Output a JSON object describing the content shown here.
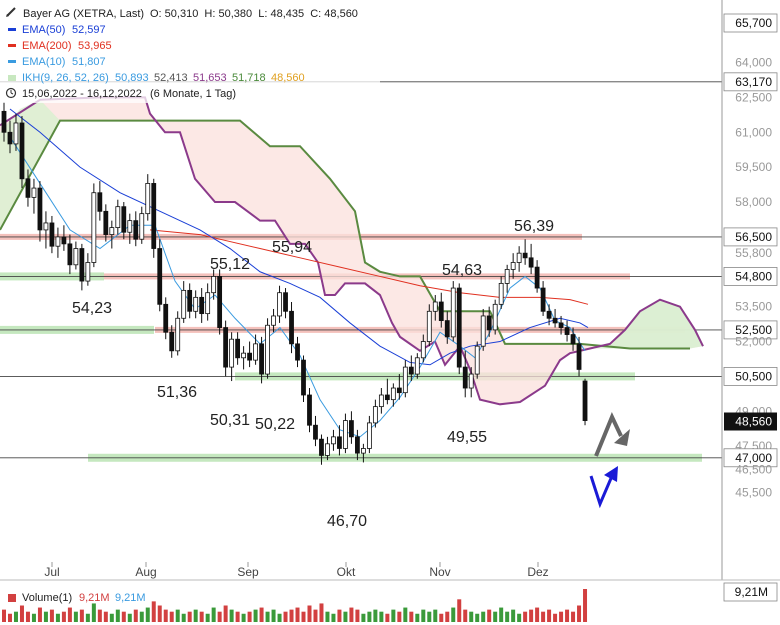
{
  "header": {
    "title": "Bayer AG (XETRA, Last)",
    "ohlc": "O: 50,310  H: 50,380  L: 48,435  C: 48,560",
    "range": "15,06,2022 - 16,12,2022",
    "range_note": "(6 Monate, 1 Tag)"
  },
  "legend": [
    {
      "label": "EMA(50)",
      "value": "52,597",
      "color": "#1a3fd6"
    },
    {
      "label": "EMA(200)",
      "value": "53,965",
      "color": "#e03020"
    },
    {
      "label": "EMA(10)",
      "value": "51,807",
      "color": "#3a9be0"
    }
  ],
  "ikh": {
    "label": "IKH(9, 26, 52, 26)",
    "values": [
      "50,893",
      "52,413",
      "51,653",
      "51,718",
      "48,560"
    ],
    "colors": [
      "#3a9be0",
      "#555555",
      "#8b3a8b",
      "#4a8a3a",
      "#e0a020"
    ]
  },
  "volume": {
    "label": "Volume(1)",
    "v1": "9,21M",
    "v2": "9,21M",
    "badge": "9,21M"
  },
  "chart_data": {
    "type": "candlestick",
    "y_axis": {
      "range": [
        44.7,
        66.2
      ],
      "ticks": [
        "65,700",
        "64,000",
        "63,170",
        "62,500",
        "61,000",
        "59,500",
        "58,000",
        "56,500",
        "55,800",
        "54,800",
        "53,500",
        "52,500",
        "52,000",
        "50,500",
        "49,000",
        "48,560",
        "47,500",
        "47,000",
        "46,500",
        "45,500"
      ],
      "tick_values": [
        65.7,
        64.0,
        63.17,
        62.5,
        61.0,
        59.5,
        58.0,
        56.5,
        55.8,
        54.8,
        53.5,
        52.5,
        52.0,
        50.5,
        49.0,
        48.56,
        47.5,
        47.0,
        46.5,
        45.5
      ],
      "boxed": [
        "65,700",
        "63,170",
        "56,500",
        "54,800",
        "52,500",
        "50,500",
        "47,000"
      ],
      "last_price": "48,560"
    },
    "x_axis": {
      "labels": [
        "Jul",
        "Aug",
        "Sep",
        "Okt",
        "Nov",
        "Dez"
      ]
    },
    "price_annotations": [
      {
        "text": "54,23"
      },
      {
        "text": "55,12"
      },
      {
        "text": "51,36"
      },
      {
        "text": "55,94"
      },
      {
        "text": "50,31"
      },
      {
        "text": "50,22"
      },
      {
        "text": "46,70"
      },
      {
        "text": "54,63"
      },
      {
        "text": "49,55"
      },
      {
        "text": "56,39"
      }
    ],
    "horizontal_levels": [
      {
        "value": 63.17,
        "style": "line"
      },
      {
        "value": 56.5,
        "style": "red-zone"
      },
      {
        "value": 54.8,
        "style": "red-zone"
      },
      {
        "value": 52.5,
        "style": "red-zone"
      },
      {
        "value": 50.5,
        "style": "green-zone"
      },
      {
        "value": 47.0,
        "style": "green-zone"
      }
    ],
    "candles": [
      [
        61.9,
        62.3,
        60.6,
        61.0
      ],
      [
        61.0,
        61.5,
        60.1,
        60.5
      ],
      [
        60.5,
        61.8,
        60.2,
        61.4
      ],
      [
        61.4,
        61.7,
        58.6,
        59.0
      ],
      [
        59.0,
        59.4,
        57.8,
        58.2
      ],
      [
        58.2,
        59.0,
        57.5,
        58.6
      ],
      [
        58.6,
        58.9,
        56.3,
        56.8
      ],
      [
        56.8,
        57.6,
        56.0,
        57.1
      ],
      [
        57.1,
        57.4,
        55.8,
        56.1
      ],
      [
        56.1,
        56.9,
        55.6,
        56.5
      ],
      [
        56.5,
        57.0,
        55.9,
        56.2
      ],
      [
        56.2,
        56.6,
        54.9,
        55.3
      ],
      [
        55.3,
        56.3,
        55.1,
        56.0
      ],
      [
        56.0,
        56.2,
        54.2,
        54.6
      ],
      [
        54.6,
        55.8,
        54.4,
        55.4
      ],
      [
        55.4,
        58.8,
        55.2,
        58.4
      ],
      [
        58.4,
        58.9,
        57.2,
        57.6
      ],
      [
        57.6,
        57.9,
        56.3,
        56.6
      ],
      [
        56.6,
        57.2,
        56.0,
        56.9
      ],
      [
        56.9,
        58.1,
        56.6,
        57.8
      ],
      [
        57.8,
        58.0,
        56.4,
        56.7
      ],
      [
        56.7,
        57.5,
        56.2,
        57.2
      ],
      [
        57.2,
        57.6,
        56.1,
        56.4
      ],
      [
        56.4,
        57.8,
        56.2,
        57.5
      ],
      [
        57.5,
        59.2,
        57.2,
        58.8
      ],
      [
        58.8,
        59.0,
        55.6,
        56.0
      ],
      [
        56.0,
        56.4,
        53.3,
        53.6
      ],
      [
        53.6,
        53.9,
        52.1,
        52.4
      ],
      [
        52.4,
        52.7,
        51.3,
        51.6
      ],
      [
        51.6,
        53.3,
        51.4,
        53.0
      ],
      [
        53.0,
        54.6,
        52.8,
        54.2
      ],
      [
        54.2,
        54.5,
        53.0,
        53.3
      ],
      [
        53.3,
        54.2,
        53.0,
        53.9
      ],
      [
        53.9,
        54.3,
        52.8,
        53.2
      ],
      [
        53.2,
        54.5,
        52.9,
        54.1
      ],
      [
        54.1,
        55.1,
        53.8,
        54.8
      ],
      [
        54.8,
        55.1,
        52.3,
        52.6
      ],
      [
        52.6,
        52.9,
        50.5,
        50.9
      ],
      [
        50.9,
        52.4,
        50.3,
        52.1
      ],
      [
        52.1,
        52.4,
        51.0,
        51.3
      ],
      [
        51.3,
        51.8,
        50.8,
        51.5
      ],
      [
        51.5,
        52.0,
        50.9,
        51.2
      ],
      [
        51.2,
        52.3,
        51.0,
        51.9
      ],
      [
        51.9,
        52.2,
        50.2,
        50.6
      ],
      [
        50.6,
        53.0,
        50.4,
        52.7
      ],
      [
        52.7,
        53.4,
        52.4,
        53.1
      ],
      [
        53.1,
        54.4,
        52.8,
        54.1
      ],
      [
        54.1,
        54.3,
        53.0,
        53.3
      ],
      [
        53.3,
        53.7,
        51.5,
        51.9
      ],
      [
        51.9,
        52.2,
        50.9,
        51.2
      ],
      [
        51.2,
        51.4,
        49.4,
        49.7
      ],
      [
        49.7,
        50.0,
        48.1,
        48.4
      ],
      [
        48.4,
        48.8,
        47.5,
        47.8
      ],
      [
        47.8,
        48.0,
        46.7,
        47.1
      ],
      [
        47.1,
        47.9,
        46.9,
        47.6
      ],
      [
        47.6,
        48.2,
        47.3,
        47.9
      ],
      [
        47.9,
        48.4,
        47.1,
        47.4
      ],
      [
        47.4,
        48.9,
        47.2,
        48.6
      ],
      [
        48.6,
        49.0,
        47.6,
        47.9
      ],
      [
        47.9,
        48.2,
        46.9,
        47.2
      ],
      [
        47.2,
        47.6,
        46.8,
        47.4
      ],
      [
        47.4,
        48.8,
        47.2,
        48.5
      ],
      [
        48.5,
        49.5,
        48.3,
        49.2
      ],
      [
        49.2,
        50.0,
        48.9,
        49.7
      ],
      [
        49.7,
        50.4,
        49.3,
        49.5
      ],
      [
        49.5,
        50.2,
        49.2,
        50.0
      ],
      [
        50.0,
        50.6,
        49.5,
        49.8
      ],
      [
        49.8,
        51.2,
        49.6,
        50.9
      ],
      [
        50.9,
        51.4,
        50.3,
        50.6
      ],
      [
        50.6,
        51.5,
        50.4,
        51.3
      ],
      [
        51.3,
        52.3,
        51.1,
        52.0
      ],
      [
        52.0,
        53.6,
        51.8,
        53.3
      ],
      [
        53.3,
        54.0,
        52.9,
        53.7
      ],
      [
        53.7,
        54.1,
        52.6,
        52.9
      ],
      [
        52.9,
        53.3,
        51.9,
        52.2
      ],
      [
        52.2,
        54.6,
        52.0,
        54.3
      ],
      [
        54.3,
        54.5,
        50.6,
        50.9
      ],
      [
        50.9,
        51.6,
        49.6,
        50.0
      ],
      [
        50.0,
        50.9,
        49.6,
        50.6
      ],
      [
        50.6,
        52.0,
        50.4,
        51.8
      ],
      [
        51.8,
        53.4,
        51.6,
        53.1
      ],
      [
        53.1,
        53.5,
        52.2,
        52.5
      ],
      [
        52.5,
        53.8,
        52.3,
        53.6
      ],
      [
        53.6,
        54.8,
        53.4,
        54.5
      ],
      [
        54.5,
        55.3,
        54.1,
        55.1
      ],
      [
        55.1,
        55.8,
        54.7,
        55.4
      ],
      [
        55.4,
        56.1,
        55.0,
        55.8
      ],
      [
        55.8,
        56.4,
        55.3,
        55.6
      ],
      [
        55.6,
        56.2,
        54.9,
        55.2
      ],
      [
        55.2,
        55.5,
        54.1,
        54.3
      ],
      [
        54.3,
        54.6,
        53.1,
        53.3
      ],
      [
        53.3,
        53.6,
        52.7,
        53.0
      ],
      [
        53.0,
        53.4,
        52.6,
        52.8
      ],
      [
        52.8,
        53.1,
        52.3,
        52.6
      ],
      [
        52.6,
        52.9,
        52.0,
        52.3
      ],
      [
        52.3,
        52.6,
        51.6,
        51.9
      ],
      [
        51.9,
        52.2,
        50.5,
        50.8
      ],
      [
        50.3,
        50.4,
        48.4,
        48.6
      ]
    ],
    "volume_values": [
      6,
      4,
      5,
      8,
      5,
      4,
      7,
      5,
      6,
      4,
      5,
      7,
      5,
      6,
      4,
      9,
      6,
      5,
      4,
      6,
      5,
      4,
      6,
      5,
      7,
      10,
      8,
      6,
      5,
      6,
      4,
      5,
      6,
      5,
      4,
      7,
      5,
      8,
      6,
      5,
      4,
      5,
      6,
      7,
      5,
      6,
      4,
      5,
      6,
      7,
      5,
      8,
      6,
      9,
      5,
      4,
      6,
      5,
      7,
      6,
      4,
      5,
      6,
      5,
      4,
      6,
      5,
      7,
      5,
      4,
      6,
      5,
      6,
      4,
      5,
      7,
      11,
      6,
      5,
      4,
      5,
      6,
      5,
      7,
      5,
      6,
      4,
      5,
      6,
      7,
      5,
      6,
      4,
      5,
      6,
      5,
      8,
      16
    ]
  }
}
